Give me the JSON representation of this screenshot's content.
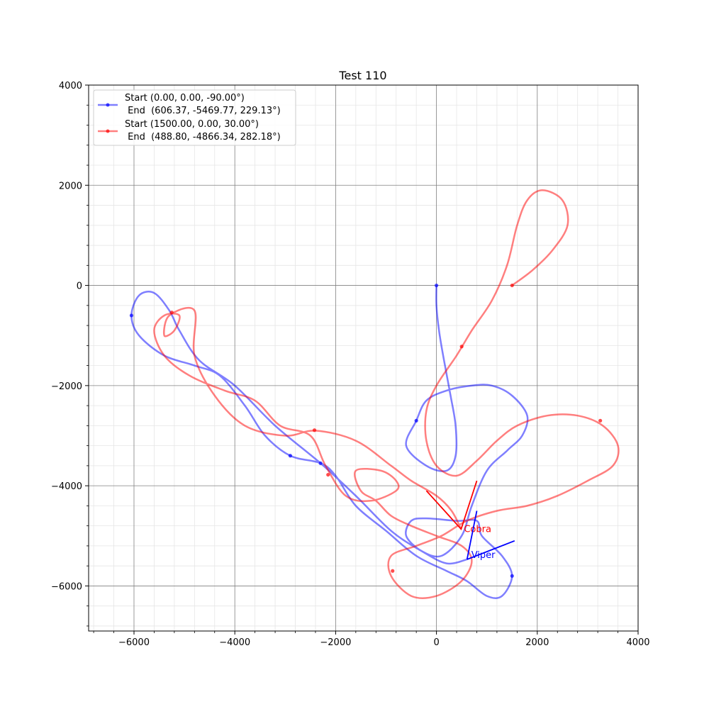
{
  "chart_data": {
    "type": "line",
    "title": "Test 110",
    "xlabel": "",
    "ylabel": "",
    "xlim": [
      -6900,
      4000
    ],
    "ylim": [
      -6900,
      4000
    ],
    "xticks": [
      -6000,
      -4000,
      -2000,
      0,
      2000,
      4000
    ],
    "yticks": [
      4000,
      2000,
      0,
      -2000,
      -4000,
      -6000
    ],
    "xtick_labels": [
      "−6000",
      "−4000",
      "−2000",
      "0",
      "2000",
      "4000"
    ],
    "ytick_labels": [
      "4000",
      "2000",
      "0",
      "−2000",
      "−4000",
      "−6000"
    ],
    "grid": true,
    "minor_grid": true,
    "legend_position": "top-left",
    "series": [
      {
        "name": "Start (0.00, 0.00, -90.00°)\n End  (606.37, -5469.77, 229.13°)",
        "legend_line1": "Start (0.00, 0.00, -90.00°)",
        "legend_line2": " End  (606.37, -5469.77, 229.13°)",
        "color": "#0000ff",
        "path": [
          [
            0,
            0
          ],
          [
            0,
            -400
          ],
          [
            50,
            -900
          ],
          [
            150,
            -1500
          ],
          [
            280,
            -2200
          ],
          [
            380,
            -2800
          ],
          [
            380,
            -3400
          ],
          [
            200,
            -3700
          ],
          [
            -200,
            -3600
          ],
          [
            -600,
            -3200
          ],
          [
            -400,
            -2700
          ],
          [
            -200,
            -2300
          ],
          [
            200,
            -2100
          ],
          [
            700,
            -2000
          ],
          [
            1100,
            -2000
          ],
          [
            1500,
            -2200
          ],
          [
            1800,
            -2600
          ],
          [
            1700,
            -3000
          ],
          [
            1400,
            -3300
          ],
          [
            1000,
            -3700
          ],
          [
            700,
            -4400
          ],
          [
            500,
            -5000
          ],
          [
            100,
            -5400
          ],
          [
            -300,
            -5300
          ],
          [
            -600,
            -5000
          ],
          [
            -500,
            -4700
          ],
          [
            -200,
            -4650
          ],
          [
            400,
            -4700
          ],
          [
            800,
            -4700
          ],
          [
            900,
            -5000
          ],
          [
            1300,
            -5400
          ],
          [
            1500,
            -5800
          ],
          [
            1300,
            -6200
          ],
          [
            1000,
            -6200
          ],
          [
            600,
            -5900
          ],
          [
            200,
            -5700
          ],
          [
            -400,
            -5400
          ],
          [
            -1000,
            -4900
          ],
          [
            -1600,
            -4400
          ],
          [
            -2000,
            -3800
          ],
          [
            -2300,
            -3550
          ],
          [
            -2900,
            -3400
          ],
          [
            -3400,
            -3000
          ],
          [
            -3800,
            -2400
          ],
          [
            -4300,
            -1800
          ],
          [
            -4800,
            -1600
          ],
          [
            -5400,
            -1400
          ],
          [
            -5900,
            -1000
          ],
          [
            -6050,
            -600
          ],
          [
            -5900,
            -200
          ],
          [
            -5600,
            -150
          ],
          [
            -5300,
            -500
          ],
          [
            -5100,
            -900
          ],
          [
            -4700,
            -1500
          ],
          [
            -4000,
            -2000
          ],
          [
            -3200,
            -2800
          ],
          [
            -2300,
            -3550
          ],
          [
            -1600,
            -4200
          ],
          [
            -900,
            -4900
          ],
          [
            -300,
            -5300
          ],
          [
            200,
            -5550
          ],
          [
            606.37,
            -5469.77
          ]
        ],
        "dots": [
          [
            0,
            0
          ],
          [
            -400,
            -2700
          ],
          [
            1500,
            -5800
          ],
          [
            -2300,
            -3550
          ],
          [
            -2900,
            -3400
          ],
          [
            -6050,
            -600
          ]
        ]
      },
      {
        "name": "Start (1500.00, 0.00, 30.00°)\n End  (488.80, -4866.34, 282.18°)",
        "legend_line1": "Start (1500.00, 0.00, 30.00°)",
        "legend_line2": " End  (488.80, -4866.34, 282.18°)",
        "color": "#ff0000",
        "path": [
          [
            1500,
            0
          ],
          [
            1900,
            300
          ],
          [
            2300,
            700
          ],
          [
            2600,
            1200
          ],
          [
            2500,
            1700
          ],
          [
            2100,
            1900
          ],
          [
            1800,
            1700
          ],
          [
            1600,
            1200
          ],
          [
            1400,
            400
          ],
          [
            1100,
            -300
          ],
          [
            700,
            -900
          ],
          [
            400,
            -1400
          ],
          [
            0,
            -2000
          ],
          [
            -200,
            -2500
          ],
          [
            -200,
            -3100
          ],
          [
            0,
            -3600
          ],
          [
            400,
            -3800
          ],
          [
            800,
            -3500
          ],
          [
            1200,
            -3100
          ],
          [
            1600,
            -2800
          ],
          [
            2200,
            -2600
          ],
          [
            2800,
            -2600
          ],
          [
            3300,
            -2800
          ],
          [
            3600,
            -3200
          ],
          [
            3500,
            -3600
          ],
          [
            3000,
            -3900
          ],
          [
            2400,
            -4200
          ],
          [
            1800,
            -4400
          ],
          [
            1200,
            -4500
          ],
          [
            600,
            -4700
          ],
          [
            100,
            -5000
          ],
          [
            -400,
            -5200
          ],
          [
            -900,
            -5400
          ],
          [
            -900,
            -5800
          ],
          [
            -500,
            -6200
          ],
          [
            0,
            -6200
          ],
          [
            500,
            -5900
          ],
          [
            700,
            -5500
          ],
          [
            500,
            -5200
          ],
          [
            0,
            -5000
          ],
          [
            -500,
            -4800
          ],
          [
            -900,
            -4600
          ],
          [
            -1200,
            -4300
          ],
          [
            -1500,
            -4100
          ],
          [
            -1600,
            -3700
          ],
          [
            -1100,
            -3700
          ],
          [
            -800,
            -3900
          ],
          [
            -800,
            -4100
          ],
          [
            -1300,
            -4300
          ],
          [
            -1800,
            -4200
          ],
          [
            -2200,
            -3600
          ],
          [
            -2500,
            -3000
          ],
          [
            -3100,
            -2800
          ],
          [
            -3600,
            -2300
          ],
          [
            -4200,
            -2100
          ],
          [
            -4900,
            -1800
          ],
          [
            -5400,
            -1400
          ],
          [
            -5600,
            -900
          ],
          [
            -5400,
            -600
          ],
          [
            -5100,
            -600
          ],
          [
            -5200,
            -900
          ],
          [
            -5400,
            -1000
          ],
          [
            -5300,
            -600
          ],
          [
            -4800,
            -500
          ],
          [
            -4800,
            -1400
          ],
          [
            -4400,
            -2200
          ],
          [
            -3800,
            -2800
          ],
          [
            -3000,
            -3000
          ],
          [
            -2400,
            -2900
          ],
          [
            -1600,
            -3100
          ],
          [
            -900,
            -3600
          ],
          [
            -500,
            -3900
          ],
          [
            0,
            -4200
          ],
          [
            300,
            -4500
          ],
          [
            488.8,
            -4866.34
          ]
        ],
        "dots": [
          [
            1500,
            0
          ],
          [
            500,
            -1220
          ],
          [
            3250,
            -2700
          ],
          [
            -2420,
            -2890
          ],
          [
            -2150,
            -3780
          ],
          [
            -870,
            -5700
          ],
          [
            -5250,
            -540
          ]
        ]
      }
    ],
    "vehicle_markers": [
      {
        "label": "Cobra",
        "color": "#ff0000",
        "lines": [
          [
            [
              -200,
              -4100
            ],
            [
              488.8,
              -4866.34
            ],
            [
              800,
              -3900
            ]
          ]
        ]
      },
      {
        "label": "Viper",
        "color": "#0000ff",
        "lines": [
          [
            [
              606.37,
              -5469.77
            ],
            [
              800,
              -4500
            ]
          ],
          [
            [
              606.37,
              -5469.77
            ],
            [
              1550,
              -5100
            ]
          ]
        ]
      }
    ]
  }
}
